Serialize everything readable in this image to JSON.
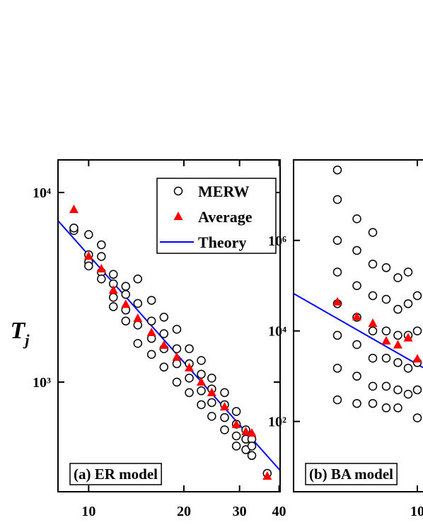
{
  "chart_data": [
    {
      "type": "scatter",
      "title": "(a) ER model",
      "log_x": true,
      "log_y": true,
      "ylabel": "T",
      "ylabel_subscript": "j",
      "xlim": [
        8,
        40.3
      ],
      "ylim": [
        264,
        14860
      ],
      "xticks": [
        10,
        20,
        30,
        40
      ],
      "yticks": [
        {
          "value": 1000,
          "label": "10³"
        },
        {
          "value": 10000,
          "label": "10⁴"
        }
      ],
      "legend": "upper right",
      "series": [
        {
          "name": "MERW",
          "color": "#000000",
          "marker": "circle",
          "x": [
            8.98,
            8.98,
            10,
            10,
            10,
            10,
            10.97,
            10.97,
            10.97,
            10.97,
            11.97,
            11.97,
            11.97,
            11.97,
            13.1,
            13.1,
            13.1,
            13.1,
            14.3,
            14.3,
            14.3,
            14.3,
            15.8,
            15.8,
            15.8,
            15.8,
            17.3,
            17.3,
            17.3,
            17.3,
            19.0,
            19.0,
            19.0,
            19.0,
            20.8,
            20.8,
            20.8,
            20.8,
            22.7,
            22.7,
            22.7,
            22.7,
            24.5,
            24.5,
            24.5,
            24.5,
            26.9,
            26.9,
            26.9,
            26.9,
            29.3,
            29.3,
            29.3,
            29.3,
            31.4,
            31.4,
            31.4,
            32.8,
            32.8,
            32.8,
            36.7
          ],
          "values": [
            6300,
            6500,
            6000,
            4700,
            4300,
            4100,
            5300,
            4600,
            3800,
            3500,
            3700,
            3300,
            2800,
            2500,
            3200,
            2900,
            2400,
            2100,
            3500,
            2600,
            2000,
            1600,
            2700,
            2100,
            1700,
            1400,
            2200,
            1800,
            1500,
            1200,
            1900,
            1500,
            1250,
            1000,
            1500,
            1250,
            1050,
            880,
            1300,
            1100,
            900,
            760,
            1050,
            920,
            780,
            660,
            880,
            760,
            650,
            560,
            700,
            600,
            520,
            460,
            560,
            500,
            440,
            500,
            460,
            410,
            330
          ]
        },
        {
          "name": "Average",
          "color": "#ff0000",
          "marker": "triangle",
          "x": [
            8.98,
            10,
            10.97,
            11.97,
            13.1,
            14.3,
            15.8,
            17.3,
            19.0,
            20.8,
            22.7,
            24.5,
            26.9,
            29.3,
            31.4,
            32.8,
            36.7
          ],
          "values": [
            8130,
            4615,
            3955,
            3055,
            2570,
            2167,
            1825,
            1563,
            1352,
            1189,
            1000,
            879,
            740,
            597,
            548,
            538,
            319
          ]
        },
        {
          "name": "Theory",
          "color": "#0000ff",
          "marker": "line",
          "x": [
            8,
            40.3
          ],
          "values": [
            7100,
            342
          ]
        }
      ]
    },
    {
      "type": "scatter",
      "title": "(b) BA model",
      "log_x": true,
      "log_y": true,
      "xlim": [
        2.42,
        40
      ],
      "ylim": [
        2.8,
        60000000
      ],
      "xticks": [
        10
      ],
      "yticks": [
        {
          "value": 100,
          "label": "10²"
        },
        {
          "value": 10000,
          "label": "10⁴"
        },
        {
          "value": 1000000,
          "label": "10⁶"
        }
      ],
      "series": [
        {
          "color": "#000000",
          "marker": "circle",
          "x": [
            4,
            4,
            4,
            4,
            4,
            4,
            4,
            4,
            5,
            5,
            5,
            5,
            5,
            5,
            5,
            6,
            6,
            6,
            6,
            6,
            6,
            6,
            7,
            7,
            7,
            7,
            7,
            7,
            8,
            8,
            8,
            8,
            8,
            8,
            9,
            9,
            9,
            9,
            9,
            10,
            10,
            10,
            10,
            10
          ],
          "values": [
            36000000,
            8000000,
            1000000,
            200000,
            40000,
            8000,
            1500,
            300,
            3000000,
            600000,
            100000,
            20000,
            5000,
            1000,
            250,
            1500000,
            300000,
            60000,
            10000,
            2500,
            600,
            250,
            250000,
            50000,
            10000,
            2500,
            600,
            200,
            150000,
            30000,
            8000,
            2000,
            500,
            200,
            200000,
            40000,
            8000,
            1500,
            400,
            60000,
            10000,
            2000,
            500,
            120
          ]
        },
        {
          "color": "#ff0000",
          "marker": "triangle",
          "x": [
            4,
            5,
            6,
            7,
            8,
            9,
            10
          ],
          "values": [
            43600,
            20500,
            14700,
            6000,
            4900,
            7000,
            2400
          ]
        },
        {
          "color": "#0000ff",
          "marker": "line",
          "x": [
            2.42,
            10.67
          ],
          "values": [
            67000,
            1550
          ]
        }
      ]
    }
  ]
}
